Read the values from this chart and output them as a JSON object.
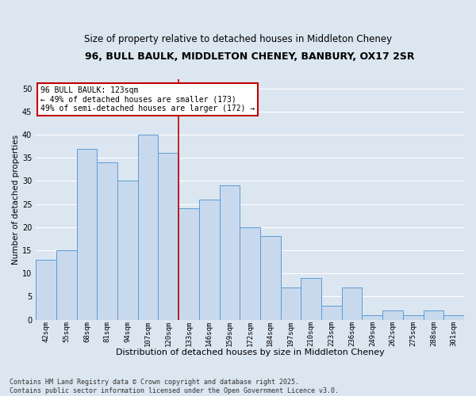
{
  "title_line1": "96, BULL BAULK, MIDDLETON CHENEY, BANBURY, OX17 2SR",
  "title_line2": "Size of property relative to detached houses in Middleton Cheney",
  "xlabel": "Distribution of detached houses by size in Middleton Cheney",
  "ylabel": "Number of detached properties",
  "categories": [
    "42sqm",
    "55sqm",
    "68sqm",
    "81sqm",
    "94sqm",
    "107sqm",
    "120sqm",
    "133sqm",
    "146sqm",
    "159sqm",
    "172sqm",
    "184sqm",
    "197sqm",
    "210sqm",
    "223sqm",
    "236sqm",
    "249sqm",
    "262sqm",
    "275sqm",
    "288sqm",
    "301sqm"
  ],
  "values": [
    13,
    15,
    37,
    34,
    30,
    40,
    36,
    24,
    26,
    29,
    20,
    18,
    7,
    9,
    3,
    7,
    1,
    2,
    1,
    2,
    1
  ],
  "bar_color": "#c8d9ed",
  "bar_edge_color": "#5b9bd5",
  "vline_x_index": 6,
  "vline_color": "#c00000",
  "annotation_text": "96 BULL BAULK: 123sqm\n← 49% of detached houses are smaller (173)\n49% of semi-detached houses are larger (172) →",
  "annotation_box_facecolor": "#ffffff",
  "annotation_box_edgecolor": "#c00000",
  "ylim": [
    0,
    52
  ],
  "yticks": [
    0,
    5,
    10,
    15,
    20,
    25,
    30,
    35,
    40,
    45,
    50
  ],
  "background_color": "#dce6f1",
  "plot_bg_color": "#dce6f1",
  "footer_text": "Contains HM Land Registry data © Crown copyright and database right 2025.\nContains public sector information licensed under the Open Government Licence v3.0.",
  "title1_fontsize": 9,
  "title2_fontsize": 8.5,
  "xlabel_fontsize": 8,
  "ylabel_fontsize": 7.5,
  "xtick_fontsize": 6.5,
  "ytick_fontsize": 7,
  "annotation_fontsize": 7,
  "footer_fontsize": 6
}
